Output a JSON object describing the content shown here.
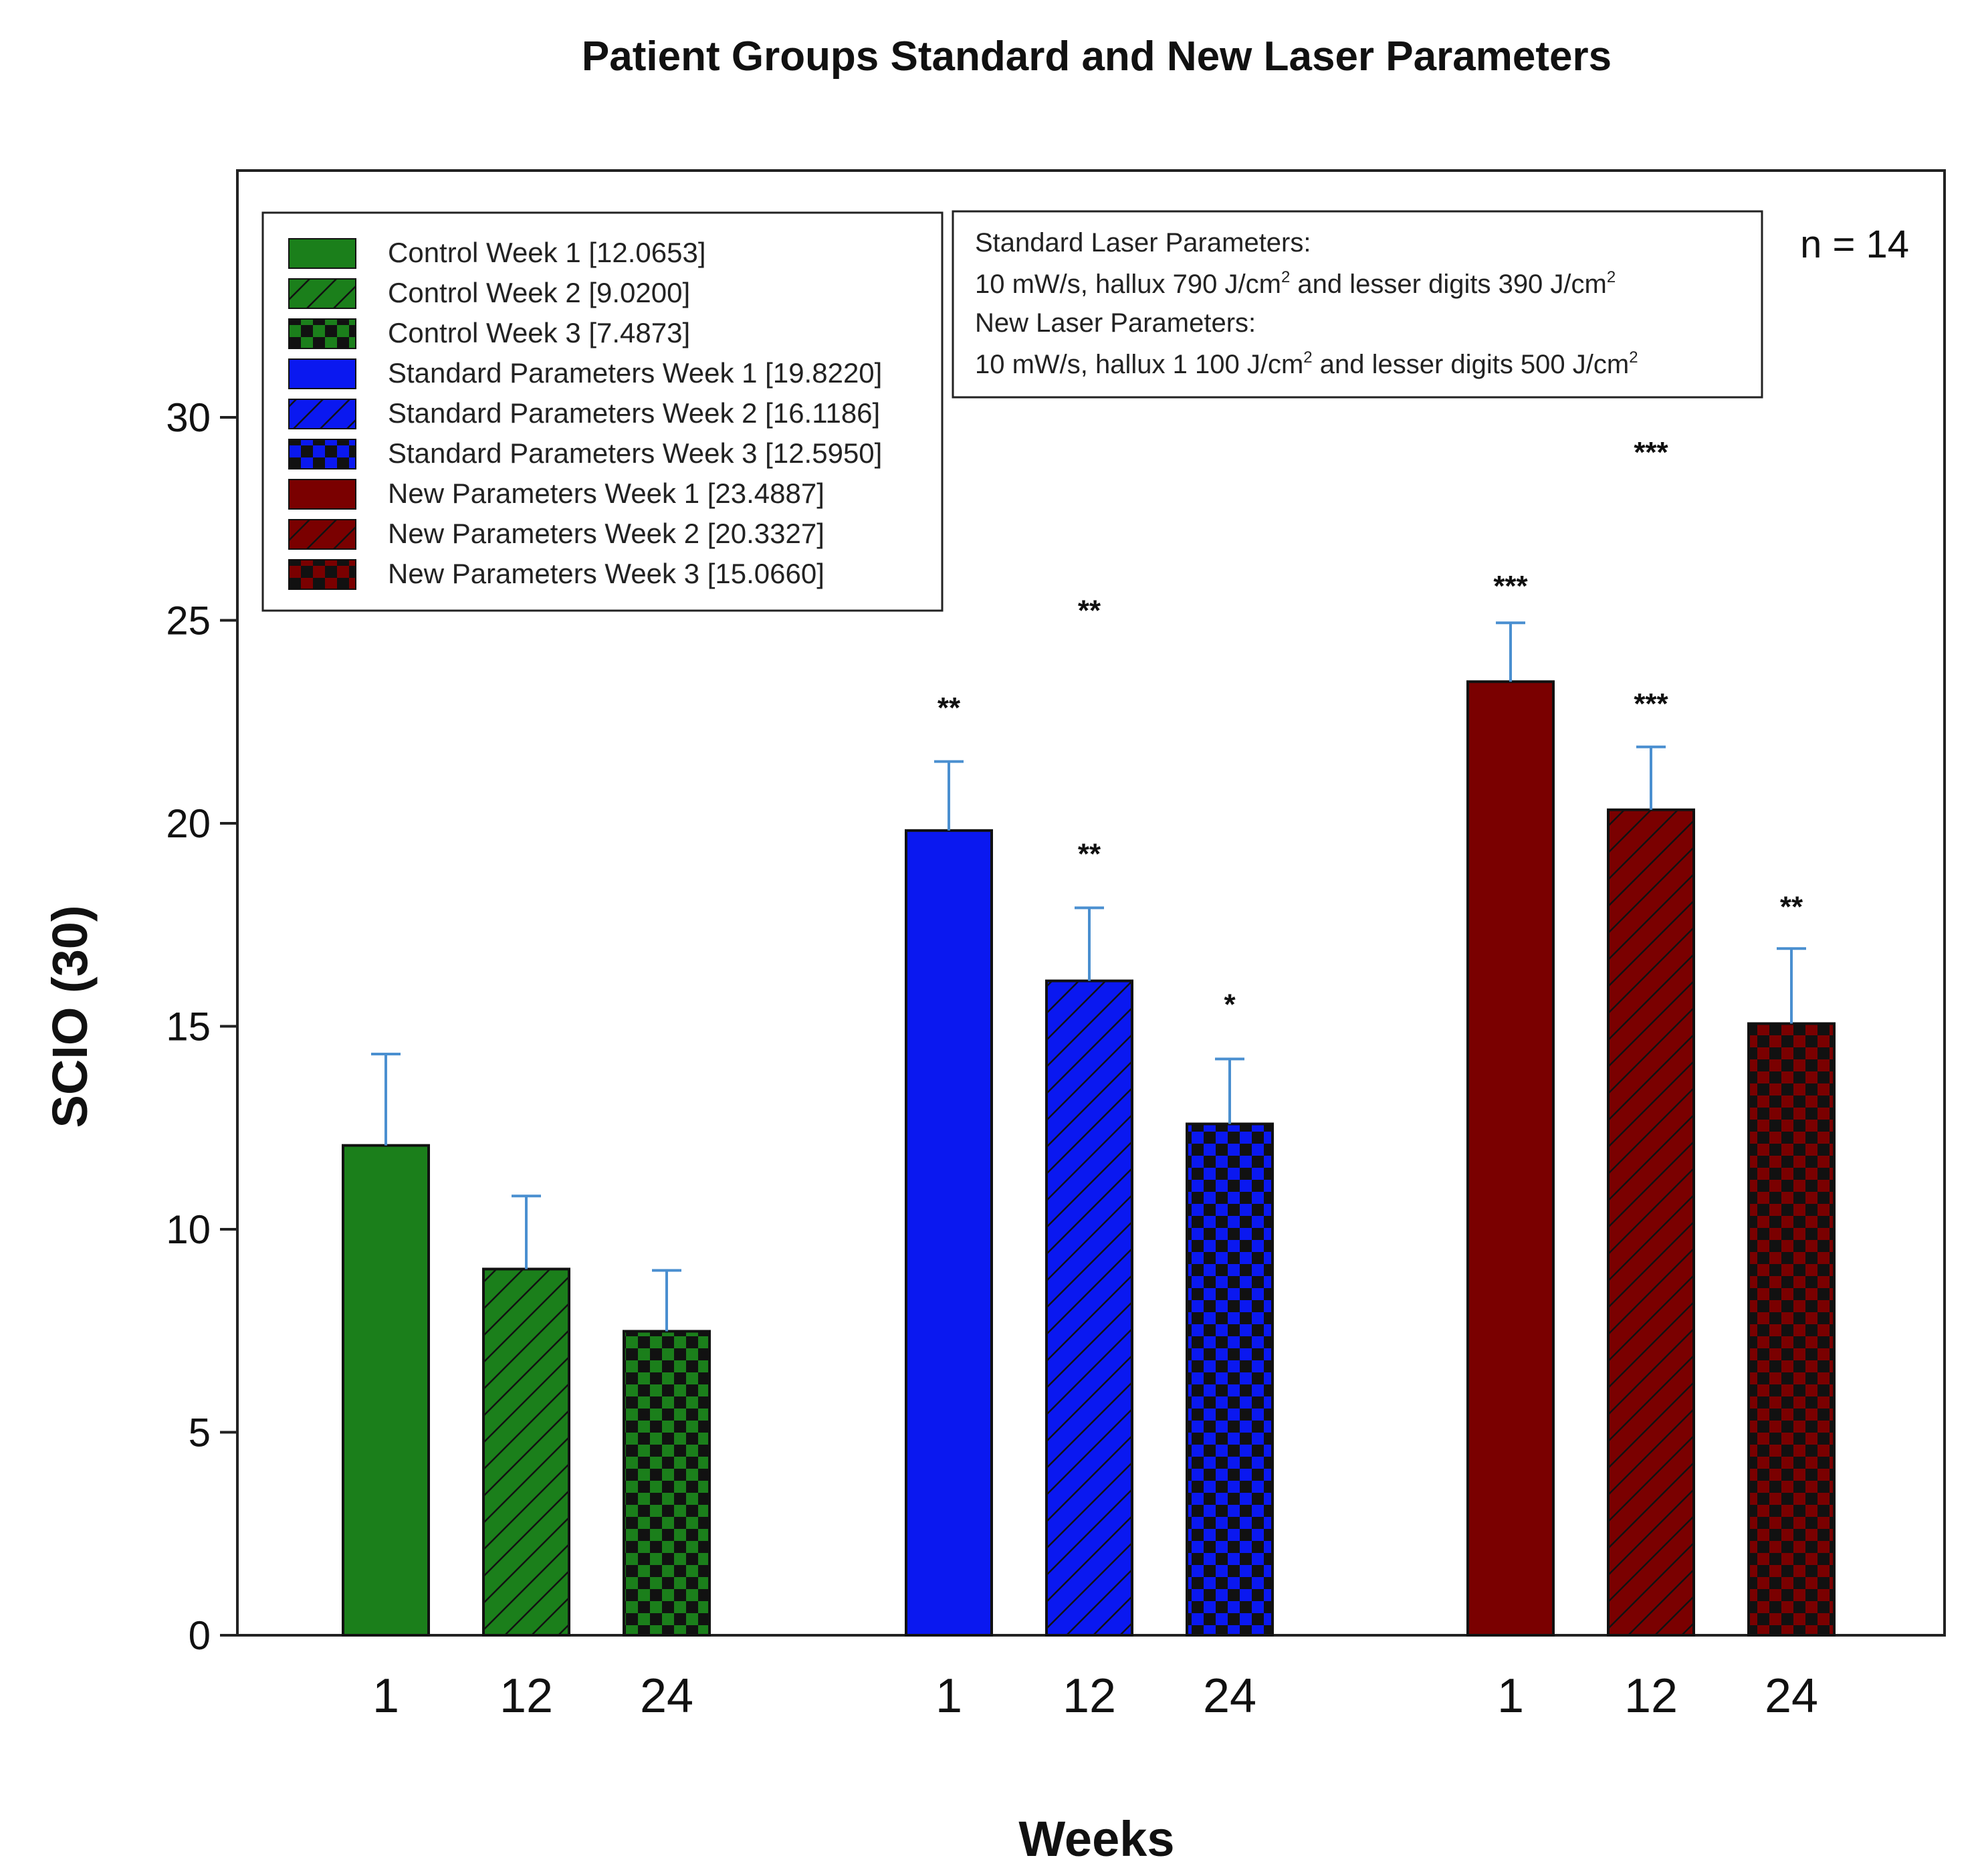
{
  "chart_data": {
    "type": "bar",
    "title": "Patient Groups  Standard  and  New Laser Parameters",
    "xlabel": "Weeks",
    "ylabel": "SCIO (30)",
    "ylim": [
      0,
      36
    ],
    "yticks": [
      0,
      5,
      10,
      15,
      20,
      25,
      30
    ],
    "grid": false,
    "legend_position": "top-left",
    "sample_size_label": "n = 14",
    "parameters_note": {
      "standard_heading": "Standard Laser Parameters:",
      "standard_values": [
        "10 mW/s, hallux 790 J/cm",
        "2",
        " and lesser digits 390 J/cm",
        "2"
      ],
      "new_heading": "New Laser Parameters:",
      "new_values": [
        "10 mW/s, hallux 1 100 J/cm",
        "2",
        " and lesser digits 500 J/cm",
        "2"
      ]
    },
    "groups": [
      {
        "name": "Control",
        "color": "#1b7f1b",
        "bars": [
          {
            "week": "1",
            "label": "Control Week 1 [12.0653]",
            "value": 12.0653,
            "error": 2.25,
            "sig": "",
            "pattern": "solid"
          },
          {
            "week": "12",
            "label": "Control Week 2 [9.0200]",
            "value": 9.02,
            "error": 1.8,
            "sig": "",
            "pattern": "hatch"
          },
          {
            "week": "24",
            "label": "Control Week 3 [7.4873]",
            "value": 7.4873,
            "error": 1.5,
            "sig": "",
            "pattern": "checker"
          }
        ]
      },
      {
        "name": "Standard Parameters",
        "color": "#0a18f0",
        "bars": [
          {
            "week": "1",
            "label": "Standard Parameters Week 1 [19.8220]",
            "value": 19.822,
            "error": 1.7,
            "sig": "**",
            "sig_value": 22.6,
            "pattern": "solid"
          },
          {
            "week": "12",
            "label": "Standard Parameters Week 2 [16.1186]",
            "value": 16.1186,
            "error": 1.8,
            "sig": "**",
            "sig_value": 19.0,
            "second_sig": "**",
            "second_sig_value": 25.0,
            "pattern": "hatch"
          },
          {
            "week": "24",
            "label": "Standard Parameters Week 3 [12.5950]",
            "value": 12.595,
            "error": 1.6,
            "sig": "*",
            "sig_value": 15.3,
            "pattern": "checker"
          }
        ]
      },
      {
        "name": "New Parameters",
        "color": "#7a0000",
        "bars": [
          {
            "week": "1",
            "label": "New Parameters Week 1 [23.4887]",
            "value": 23.4887,
            "error": 1.45,
            "sig": "***",
            "sig_value": 25.6,
            "pattern": "solid"
          },
          {
            "week": "12",
            "label": "New Parameters Week 2 [20.3327]",
            "value": 20.3327,
            "error": 1.55,
            "sig": "***",
            "sig_value": 22.7,
            "second_sig": "***",
            "second_sig_value": 28.9,
            "pattern": "hatch"
          },
          {
            "week": "24",
            "label": "New Parameters Week 3 [15.0660]",
            "value": 15.066,
            "error": 1.85,
            "sig": "**",
            "sig_value": 17.7,
            "pattern": "checker"
          }
        ]
      }
    ]
  }
}
